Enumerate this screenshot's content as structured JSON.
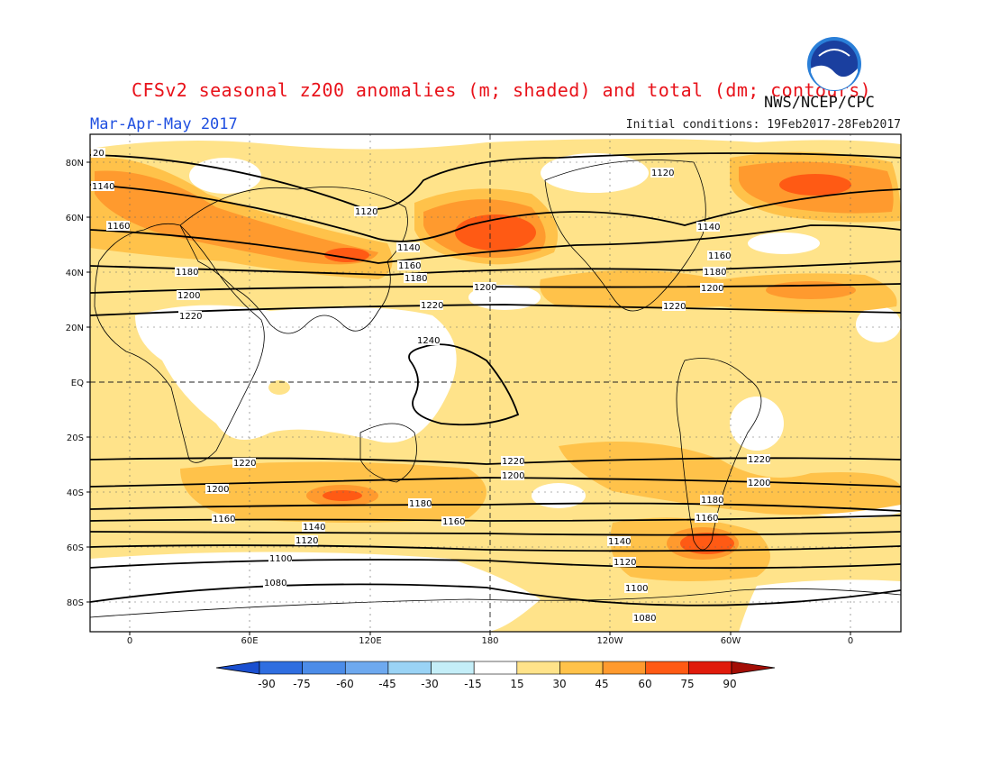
{
  "header": {
    "title": "CFSv2 seasonal z200 anomalies (m; shaded) and total (dm; contours)",
    "agency": "NWS/NCEP/CPC",
    "season": "Mar-Apr-May 2017",
    "initial_conditions": "Initial conditions: 19Feb2017-28Feb2017",
    "logo_text": "NOAA"
  },
  "map": {
    "lat_labels": [
      "80N",
      "60N",
      "40N",
      "20N",
      "EQ",
      "20S",
      "40S",
      "60S",
      "80S"
    ],
    "lon_labels": [
      "0",
      "60E",
      "120E",
      "180",
      "120W",
      "60W",
      "0"
    ],
    "contour_labels": [
      "20",
      "1140",
      "1160",
      "1180",
      "1200",
      "1220",
      "1120",
      "1140",
      "1160",
      "1180",
      "1200",
      "1220",
      "1240",
      "1120",
      "1140",
      "1160",
      "1180",
      "1200",
      "1220",
      "1220",
      "1200",
      "1180",
      "1160",
      "1140",
      "1120",
      "1100",
      "1080",
      "1220",
      "1200",
      "1160",
      "1140",
      "1120",
      "1100",
      "1080",
      "1220",
      "1200",
      "1180",
      "1160"
    ],
    "colors": {
      "land_outline": "#000000",
      "contour": "#000000",
      "pos15": "#ffe38a",
      "pos30": "#ffc24a",
      "pos45": "#ff9a2e",
      "pos60": "#ff5a14",
      "pos75": "#e01b0c"
    }
  },
  "colorbar": {
    "labels": [
      "-90",
      "-75",
      "-60",
      "-45",
      "-30",
      "-15",
      "15",
      "30",
      "45",
      "60",
      "75",
      "90"
    ],
    "colors": [
      "#1a4fd0",
      "#2f6ee0",
      "#4c8ce8",
      "#6ea9ef",
      "#9ad3f5",
      "#c4eef8",
      "#ffffff",
      "#ffe38a",
      "#ffc24a",
      "#ff9a2e",
      "#ff5a14",
      "#e01b0c",
      "#a30e06"
    ]
  }
}
